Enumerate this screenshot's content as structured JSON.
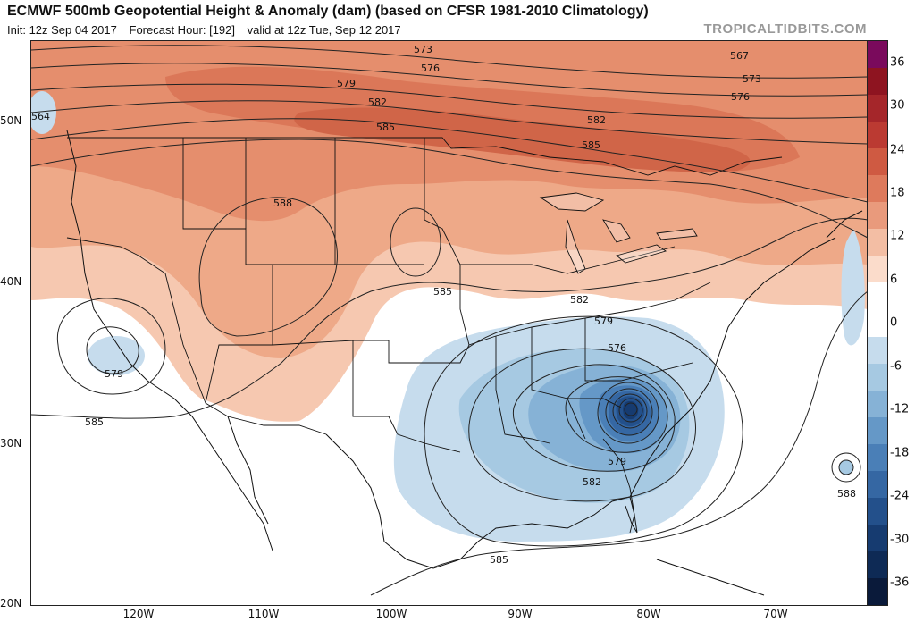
{
  "header": {
    "title": "ECMWF 500mb Geopotential Height & Anomaly (dam) (based on CFSR 1981-2010 Climatology)",
    "init": "Init: 12z Sep 04 2017",
    "forecast_hour": "Forecast Hour: [192]",
    "valid": "valid at 12z Tue, Sep 12 2017",
    "brand": "TROPICALTIDBITS.COM"
  },
  "axes": {
    "lat_labels": [
      "50N",
      "40N",
      "30N",
      "20N"
    ],
    "lon_labels": [
      "120W",
      "110W",
      "100W",
      "90W",
      "80W",
      "70W"
    ]
  },
  "contour_labels": [
    "573",
    "576",
    "579",
    "582",
    "585",
    "567",
    "573",
    "576",
    "582",
    "585",
    "588",
    "585",
    "582",
    "579",
    "576",
    "579",
    "582",
    "585",
    "579",
    "585",
    "588",
    "564"
  ],
  "colorbar": {
    "labels": [
      "36",
      "30",
      "24",
      "18",
      "12",
      "6",
      "0",
      "-6",
      "-12",
      "-18",
      "-24",
      "-30",
      "-36"
    ],
    "colors": [
      "#7a0a5c",
      "#8e1420",
      "#a5262a",
      "#bb3a32",
      "#cf5a42",
      "#de7a5c",
      "#e99a7c",
      "#f3bea4",
      "#fbdccb",
      "#ffffff",
      "#ffffff",
      "#c6dced",
      "#a6c9e2",
      "#86b2d6",
      "#6598c7",
      "#4a7fb7",
      "#3567a3",
      "#23508b",
      "#163b70",
      "#0e2a55",
      "#0a1a3a"
    ]
  }
}
